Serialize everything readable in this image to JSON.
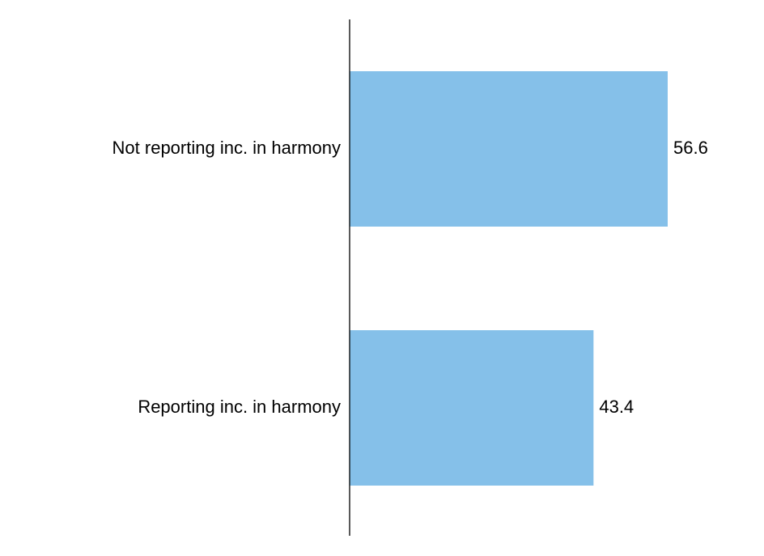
{
  "chart_data": {
    "type": "bar",
    "orientation": "horizontal",
    "categories": [
      "Not reporting inc. in harmony",
      "Reporting inc. in harmony"
    ],
    "values": [
      56.6,
      43.4
    ],
    "value_labels": [
      "56.6",
      "43.4"
    ],
    "title": "",
    "xlabel": "",
    "ylabel": "",
    "xlim": [
      0,
      70
    ],
    "grid": false,
    "legend": "none",
    "bar_color": "#85C0E9",
    "axis_color": "#000000"
  }
}
